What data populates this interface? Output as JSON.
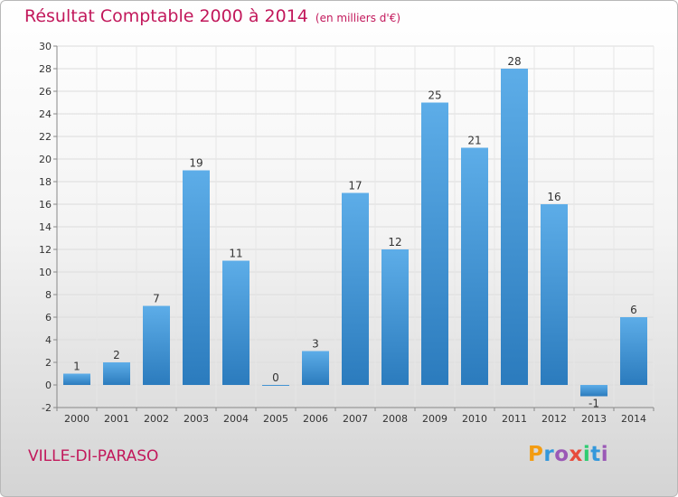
{
  "title": "Résultat Comptable 2000 à 2014",
  "unit": "(en milliers d'€)",
  "commune": "VILLE-DI-PARASO",
  "logo": {
    "letters": [
      "P",
      "r",
      "o",
      "x",
      "i",
      "t",
      "i"
    ],
    "colors": [
      "#f39c12",
      "#3498db",
      "#9b59b6",
      "#e74c3c",
      "#2ecc71",
      "#3498db",
      "#9b59b6"
    ]
  },
  "colors": {
    "bar": "#3a8fd4",
    "bar_light": "#5dade8",
    "title": "#c2185b"
  },
  "chart_data": {
    "type": "bar",
    "title": "Résultat Comptable 2000 à 2014",
    "categories": [
      "2000",
      "2001",
      "2002",
      "2003",
      "2004",
      "2005",
      "2006",
      "2007",
      "2008",
      "2009",
      "2010",
      "2011",
      "2012",
      "2013",
      "2014"
    ],
    "values": [
      1,
      2,
      7,
      19,
      11,
      0,
      3,
      17,
      12,
      25,
      21,
      28,
      16,
      -1,
      6
    ],
    "ylim": [
      -2,
      30
    ],
    "yticks": [
      -2,
      0,
      2,
      4,
      6,
      8,
      10,
      12,
      14,
      16,
      18,
      20,
      22,
      24,
      26,
      28,
      30
    ],
    "grid": true,
    "xlabel": "",
    "ylabel": ""
  }
}
